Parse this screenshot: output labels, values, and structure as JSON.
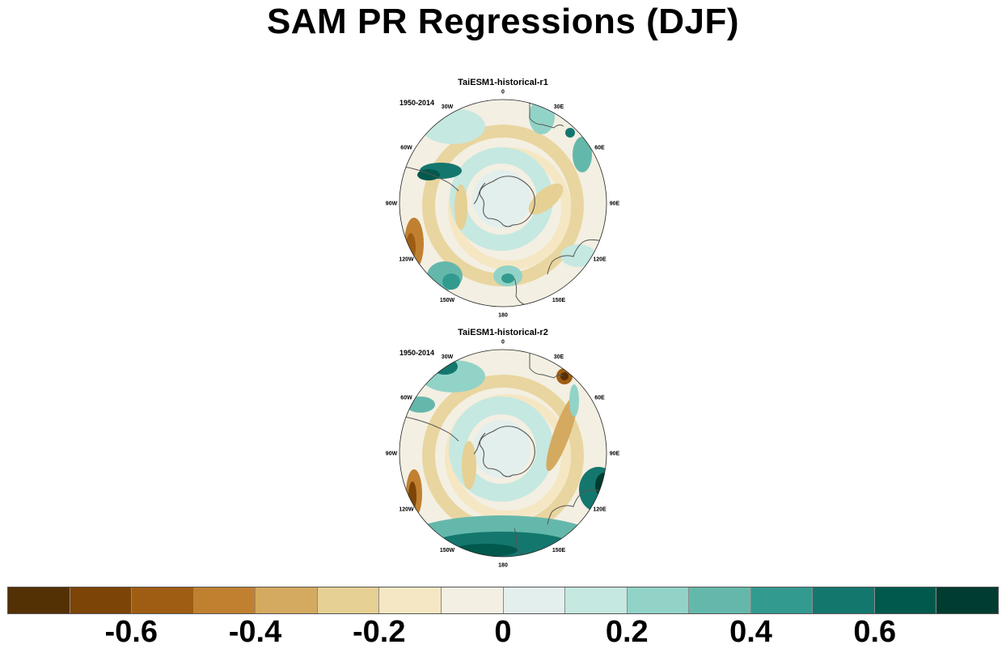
{
  "title": "SAM PR Regressions (DJF)",
  "panels": [
    {
      "title": "TaiESM1-historical-r1",
      "period": "1950-2014",
      "lon_labels": [
        "0",
        "30E",
        "60E",
        "90E",
        "120E",
        "150E",
        "180",
        "150W",
        "120W",
        "90W",
        "60W",
        "30W"
      ]
    },
    {
      "title": "TaiESM1-historical-r2",
      "period": "1950-2014",
      "lon_labels": [
        "0",
        "30E",
        "60E",
        "90E",
        "120E",
        "150E",
        "180",
        "150W",
        "120W",
        "90W",
        "60W",
        "30W"
      ]
    }
  ],
  "colorbar": {
    "colors": [
      "#543005",
      "#7c4507",
      "#9f5d13",
      "#c08030",
      "#d4aa60",
      "#e6d093",
      "#f5e7c3",
      "#f3efe2",
      "#e3efed",
      "#c5e8e1",
      "#92d3c8",
      "#64b8ab",
      "#339a8f",
      "#14776e",
      "#01594d",
      "#003c30"
    ],
    "tick_labels": [
      "-0.6",
      "-0.4",
      "-0.2",
      "0",
      "0.2",
      "0.4",
      "0.6"
    ]
  },
  "fill_colors": {
    "ocean_base": "#e3efed",
    "land_line": "#555555"
  }
}
